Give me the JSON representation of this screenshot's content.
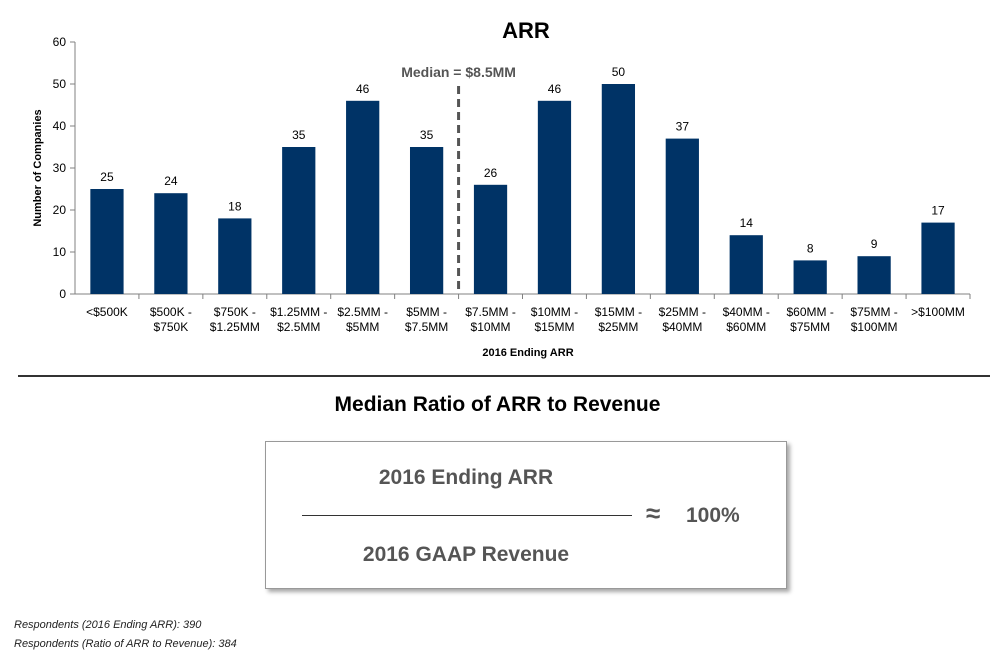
{
  "chart_data": {
    "type": "bar",
    "title": "ARR",
    "xlabel": "2016 Ending ARR",
    "ylabel": "Number of Companies",
    "ylim": [
      0,
      60
    ],
    "yticks": [
      0,
      10,
      20,
      30,
      40,
      50,
      60
    ],
    "grid": false,
    "legend": "none",
    "bar_color": "#003366",
    "categories": [
      [
        "<$500K"
      ],
      [
        "$500K -",
        "$750K"
      ],
      [
        "$750K -",
        "$1.25MM"
      ],
      [
        "$1.25MM -",
        "$2.5MM"
      ],
      [
        "$2.5MM -",
        "$5MM"
      ],
      [
        "$5MM -",
        "$7.5MM"
      ],
      [
        "$7.5MM -",
        "$10MM"
      ],
      [
        "$10MM -",
        "$15MM"
      ],
      [
        "$15MM -",
        "$25MM"
      ],
      [
        "$25MM -",
        "$40MM"
      ],
      [
        "$40MM -",
        "$60MM"
      ],
      [
        "$60MM -",
        "$75MM"
      ],
      [
        "$75MM -",
        "$100MM"
      ],
      [
        ">$100MM"
      ]
    ],
    "values": [
      25,
      24,
      18,
      35,
      46,
      35,
      26,
      46,
      50,
      37,
      14,
      8,
      9,
      17
    ],
    "annotation": {
      "text": "Median = $8.5MM",
      "between_categories": [
        5,
        6
      ],
      "style": "dashed",
      "color": "#555555"
    }
  },
  "ratio": {
    "title": "Median Ratio of ARR to Revenue",
    "numerator": "2016 Ending ARR",
    "denominator": "2016 GAAP Revenue",
    "approx_symbol": "≈",
    "value": "100%"
  },
  "footnotes": [
    "Respondents (2016 Ending ARR): 390",
    "Respondents (Ratio of ARR to Revenue): 384"
  ]
}
